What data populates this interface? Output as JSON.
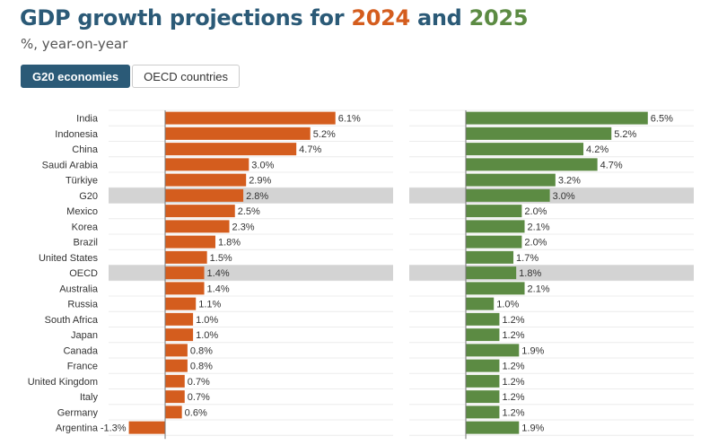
{
  "title": {
    "prefix": "GDP growth projections for ",
    "year1": "2024",
    "middle": " and ",
    "year2": "2025"
  },
  "subtitle": "%, year-on-year",
  "tabs": [
    {
      "label": "G20 economies",
      "active": true
    },
    {
      "label": "OECD countries",
      "active": false
    }
  ],
  "colors": {
    "bar_2024": "#d45d1e",
    "bar_2025": "#5c8b43",
    "highlight_row": "#d3d3d3",
    "title": "#2b5a77"
  },
  "chart_data": {
    "type": "bar",
    "orientation": "horizontal",
    "title": "GDP growth projections for 2024 and 2025",
    "unit": "%, year-on-year",
    "categories": [
      "India",
      "Indonesia",
      "China",
      "Saudi Arabia",
      "Türkiye",
      "G20",
      "Mexico",
      "Korea",
      "Brazil",
      "United States",
      "OECD",
      "Australia",
      "Russia",
      "South Africa",
      "Japan",
      "Canada",
      "France",
      "United Kingdom",
      "Italy",
      "Germany",
      "Argentina"
    ],
    "highlighted": [
      "G20",
      "OECD"
    ],
    "series": [
      {
        "name": "2024",
        "values": [
          6.1,
          5.2,
          4.7,
          3.0,
          2.9,
          2.8,
          2.5,
          2.3,
          1.8,
          1.5,
          1.4,
          1.4,
          1.1,
          1.0,
          1.0,
          0.8,
          0.8,
          0.7,
          0.7,
          0.6,
          -1.3
        ],
        "labels": [
          "6.1%",
          "5.2%",
          "4.7%",
          "3.0%",
          "2.9%",
          "2.8%",
          "2.5%",
          "2.3%",
          "1.8%",
          "1.5%",
          "1.4%",
          "1.4%",
          "1.1%",
          "1.0%",
          "1.0%",
          "0.8%",
          "0.8%",
          "0.7%",
          "0.7%",
          "0.6%",
          "-1.3%"
        ]
      },
      {
        "name": "2025",
        "values": [
          6.5,
          5.2,
          4.2,
          4.7,
          3.2,
          3.0,
          2.0,
          2.1,
          2.0,
          1.7,
          1.8,
          2.1,
          1.0,
          1.2,
          1.2,
          1.9,
          1.2,
          1.2,
          1.2,
          1.2,
          1.9
        ],
        "labels": [
          "6.5%",
          "5.2%",
          "4.2%",
          "4.7%",
          "3.2%",
          "3.0%",
          "2.0%",
          "2.1%",
          "2.0%",
          "1.7%",
          "1.8%",
          "2.1%",
          "1.0%",
          "1.2%",
          "1.2%",
          "1.9%",
          "1.2%",
          "1.2%",
          "1.2%",
          "1.2%",
          "1.9%"
        ]
      }
    ]
  }
}
